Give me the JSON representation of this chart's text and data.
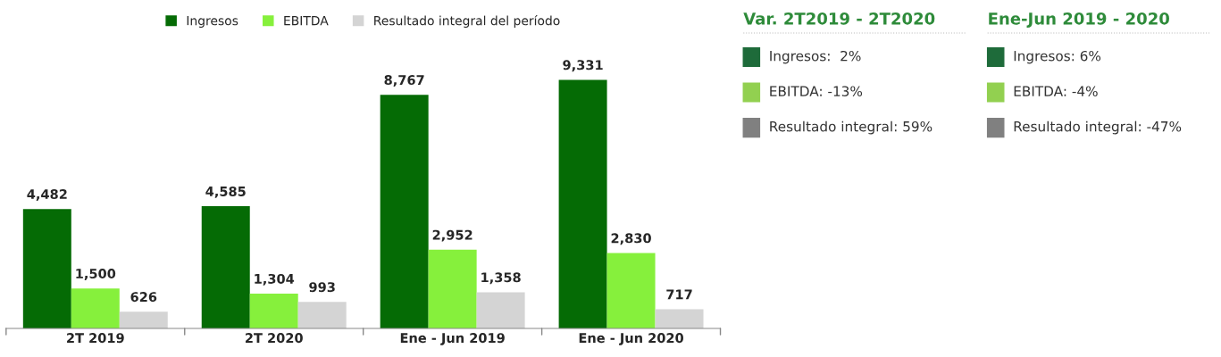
{
  "chart_data": [
    {
      "type": "bar",
      "categories": [
        "2T 2019",
        "2T 2020",
        "Ene - Jun 2019",
        "Ene - Jun 2020"
      ],
      "series": [
        {
          "name": "Ingresos",
          "color": "#056b05",
          "values": [
            4482,
            4585,
            8767,
            9331
          ],
          "value_labels": [
            "4,482",
            "4,585",
            "8,767",
            "9,331"
          ]
        },
        {
          "name": "EBITDA",
          "color": "#86f03c",
          "values": [
            1500,
            1304,
            2952,
            2830
          ],
          "value_labels": [
            "1,500",
            "1,304",
            "2,952",
            "2,830"
          ]
        },
        {
          "name": "Resultado integral del período",
          "color": "#d4d4d4",
          "values": [
            626,
            993,
            1358,
            717
          ],
          "value_labels": [
            "626",
            "993",
            "1,358",
            "717"
          ]
        }
      ],
      "legend": "top",
      "grid": false
    },
    {
      "type": "other",
      "title": "Var. 2T2019 - 2T2020",
      "annotations": [
        "Ingresos:  2%",
        "EBITDA: -13%",
        "Resultado integral: 59%"
      ],
      "colors": [
        "#1e6b3a",
        "#92d050",
        "#808080"
      ]
    },
    {
      "type": "other",
      "title": "Ene-Jun 2019 - 2020",
      "annotations": [
        "Ingresos: 6%",
        "EBITDA: -4%",
        "Resultado integral: -47%"
      ],
      "colors": [
        "#1e6b3a",
        "#92d050",
        "#808080"
      ]
    }
  ]
}
